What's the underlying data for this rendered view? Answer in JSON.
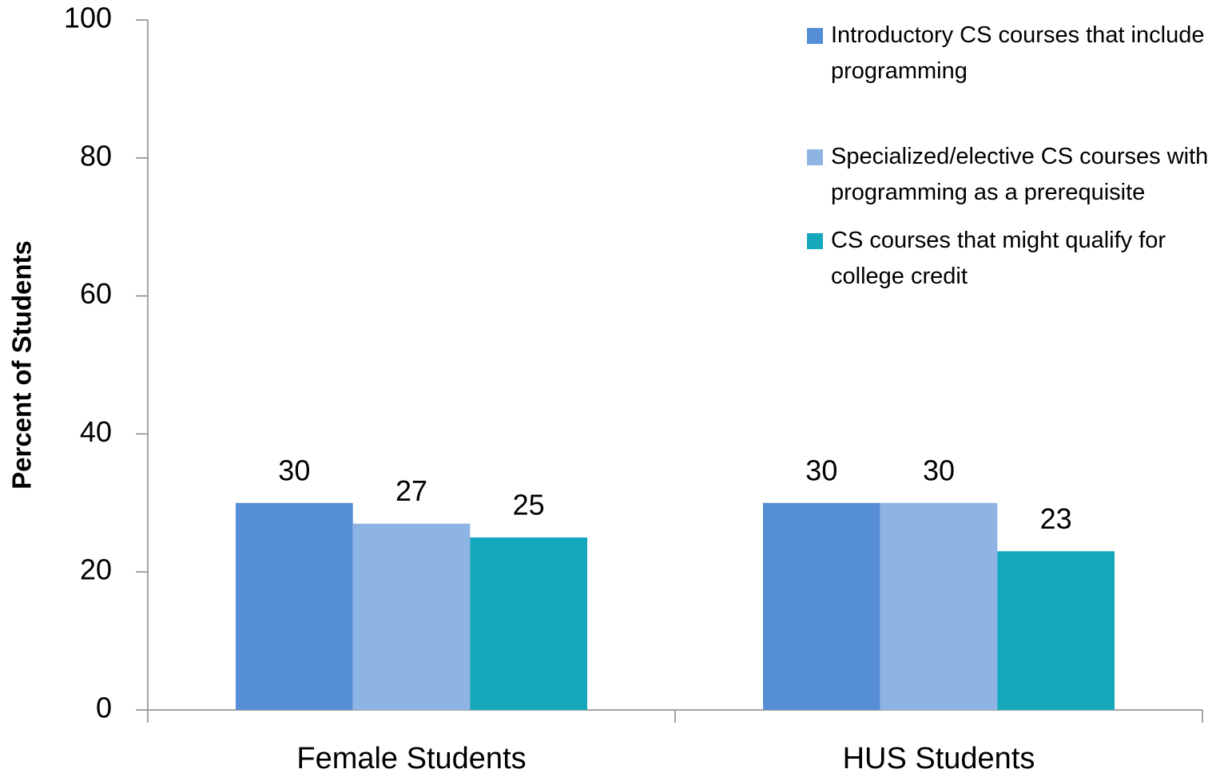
{
  "chart_data": {
    "type": "bar",
    "y_label": "Percent of Students",
    "categories": [
      "Female Students",
      "HUS Students"
    ],
    "series": [
      {
        "name": "Introductory CS courses that include programming",
        "color": "#558ed5",
        "values": [
          30,
          30
        ]
      },
      {
        "name": "Specialized/elective CS courses with programming as a prerequisite",
        "color": "#8eb4e3",
        "values": [
          27,
          30
        ]
      },
      {
        "name": "CS courses that might qualify for college credit",
        "color": "#15a7bc",
        "values": [
          25,
          23
        ]
      }
    ],
    "ylim": [
      0,
      100
    ],
    "yticks": [
      0,
      20,
      40,
      60,
      80,
      100
    ],
    "grid": false,
    "legend": "top-right"
  }
}
